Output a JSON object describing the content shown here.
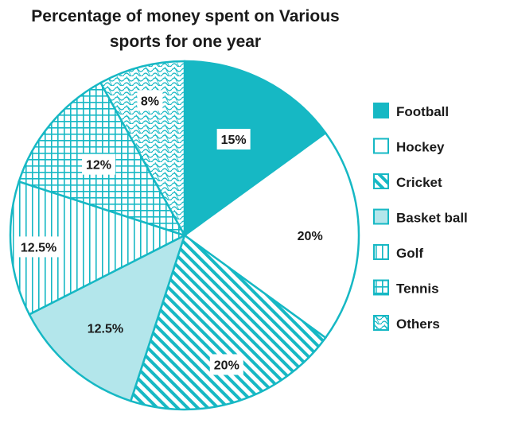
{
  "chart_data": {
    "type": "pie",
    "title_lines": [
      "Percentage of money spent on Various",
      "sports for one year"
    ],
    "start_angle_deg": 0,
    "direction": "clockwise",
    "legend_position": "right",
    "slices": [
      {
        "name": "Football",
        "value": 15,
        "label": "15%",
        "pattern": "solid"
      },
      {
        "name": "Hockey",
        "value": 20,
        "label": "20%",
        "pattern": "none"
      },
      {
        "name": "Cricket",
        "value": 20,
        "label": "20%",
        "pattern": "diagonal-stripes"
      },
      {
        "name": "Basket ball",
        "value": 12.5,
        "label": "12.5%",
        "pattern": "light-fill"
      },
      {
        "name": "Golf",
        "value": 12.5,
        "label": "12.5%",
        "pattern": "vertical-stripes"
      },
      {
        "name": "Tennis",
        "value": 12,
        "label": "12%",
        "pattern": "grid"
      },
      {
        "name": "Others",
        "value": 8,
        "label": "8%",
        "pattern": "wavy"
      }
    ],
    "colors": {
      "primary": "#16b8c4",
      "light": "#b3e6eb",
      "text": "#1a1a1a",
      "background": "#ffffff"
    }
  }
}
